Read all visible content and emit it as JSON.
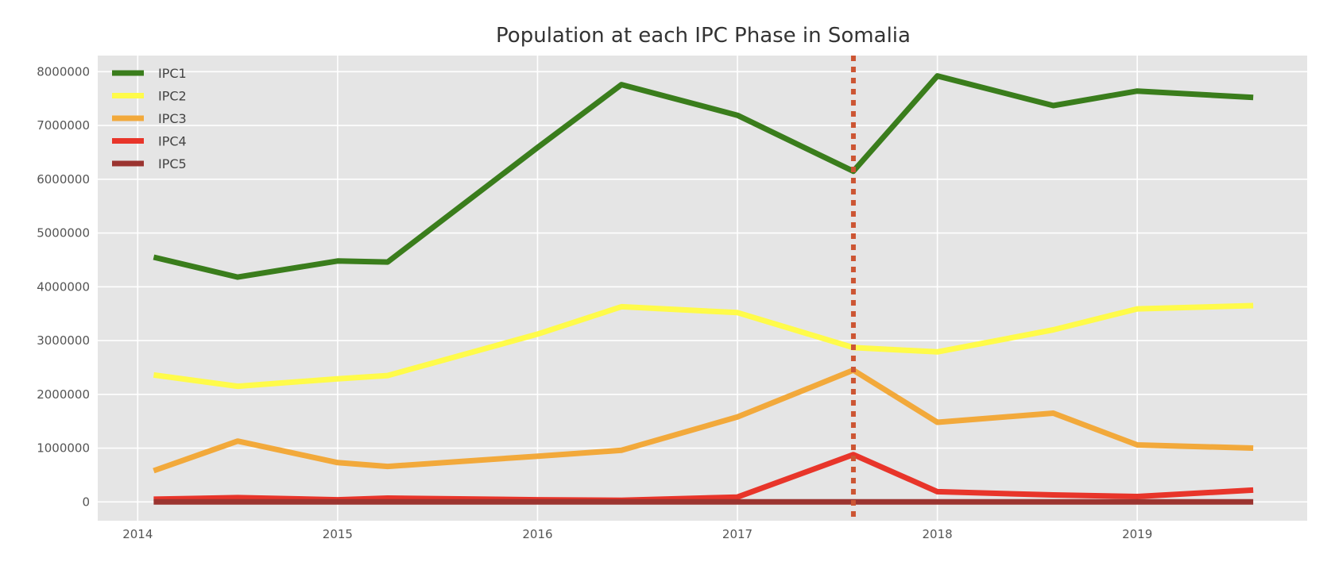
{
  "chart_data": {
    "type": "line",
    "title": "Population at each IPC Phase in Somalia",
    "xlabel": "",
    "ylabel": "",
    "xlim": [
      2013.8,
      2019.85
    ],
    "ylim": [
      -350000,
      8300000
    ],
    "grid": true,
    "legend_position": "top-left",
    "x_ticks": [
      2014,
      2015,
      2016,
      2017,
      2018,
      2019
    ],
    "x_tick_labels": [
      "2014",
      "2015",
      "2016",
      "2017",
      "2018",
      "2019"
    ],
    "y_ticks": [
      0,
      1000000,
      2000000,
      3000000,
      4000000,
      5000000,
      6000000,
      7000000,
      8000000
    ],
    "y_tick_labels": [
      "0",
      "1000000",
      "2000000",
      "3000000",
      "4000000",
      "5000000",
      "6000000",
      "7000000",
      "8000000"
    ],
    "x": [
      2014.08,
      2014.5,
      2015.0,
      2015.25,
      2016.0,
      2016.42,
      2017.0,
      2017.58,
      2018.0,
      2018.58,
      2019.0,
      2019.58
    ],
    "series": [
      {
        "name": "IPC1",
        "color": "#3a7d1c",
        "values": [
          4550000,
          4180000,
          4480000,
          4460000,
          6590000,
          7760000,
          7190000,
          6150000,
          7920000,
          7370000,
          7640000,
          7520000
        ]
      },
      {
        "name": "IPC2",
        "color": "#fffb4a",
        "values": [
          2360000,
          2150000,
          2290000,
          2350000,
          3120000,
          3630000,
          3520000,
          2870000,
          2790000,
          3200000,
          3590000,
          3650000
        ]
      },
      {
        "name": "IPC3",
        "color": "#f2a93b",
        "values": [
          580000,
          1130000,
          730000,
          660000,
          850000,
          960000,
          1580000,
          2450000,
          1480000,
          1650000,
          1060000,
          1000000
        ]
      },
      {
        "name": "IPC4",
        "color": "#e8352a",
        "values": [
          50000,
          80000,
          40000,
          70000,
          40000,
          30000,
          90000,
          880000,
          190000,
          130000,
          100000,
          220000
        ]
      },
      {
        "name": "IPC5",
        "color": "#9b3430",
        "values": [
          0,
          0,
          0,
          0,
          0,
          0,
          0,
          0,
          0,
          0,
          0,
          0
        ]
      }
    ],
    "annotations": [
      {
        "type": "vertical-dotted-line",
        "x": 2017.58,
        "color": "#cc5533"
      }
    ]
  }
}
